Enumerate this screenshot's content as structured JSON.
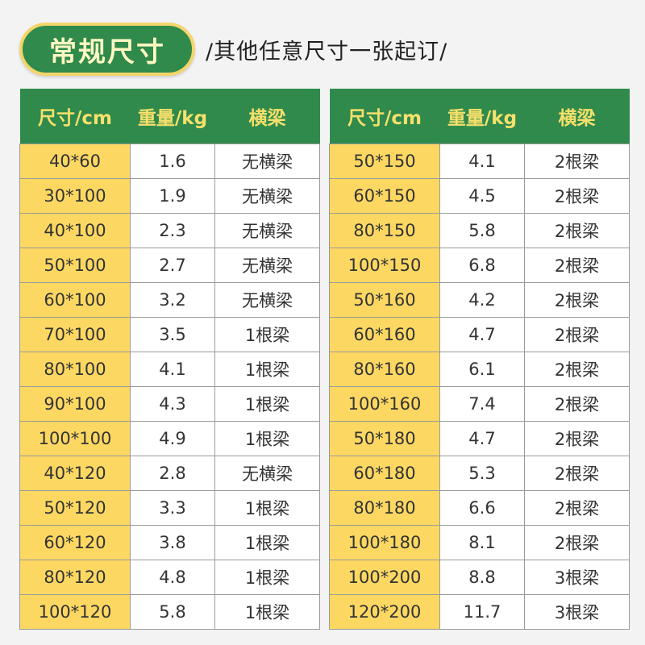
{
  "header": {
    "badge": "常规尺寸",
    "subtitle": "/其他任意尺寸一张起订/"
  },
  "columns": [
    "尺寸/cm",
    "重量/kg",
    "横梁"
  ],
  "left_table": [
    [
      "40*60",
      "1.6",
      "无横梁"
    ],
    [
      "30*100",
      "1.9",
      "无横梁"
    ],
    [
      "40*100",
      "2.3",
      "无横梁"
    ],
    [
      "50*100",
      "2.7",
      "无横梁"
    ],
    [
      "60*100",
      "3.2",
      "无横梁"
    ],
    [
      "70*100",
      "3.5",
      "1根梁"
    ],
    [
      "80*100",
      "4.1",
      "1根梁"
    ],
    [
      "90*100",
      "4.3",
      "1根梁"
    ],
    [
      "100*100",
      "4.9",
      "1根梁"
    ],
    [
      "40*120",
      "2.8",
      "无横梁"
    ],
    [
      "50*120",
      "3.3",
      "1根梁"
    ],
    [
      "60*120",
      "3.8",
      "1根梁"
    ],
    [
      "80*120",
      "4.8",
      "1根梁"
    ],
    [
      "100*120",
      "5.8",
      "1根梁"
    ]
  ],
  "right_table": [
    [
      "50*150",
      "4.1",
      "2根梁"
    ],
    [
      "60*150",
      "4.5",
      "2根梁"
    ],
    [
      "80*150",
      "5.8",
      "2根梁"
    ],
    [
      "100*150",
      "6.8",
      "2根梁"
    ],
    [
      "50*160",
      "4.2",
      "2根梁"
    ],
    [
      "60*160",
      "4.7",
      "2根梁"
    ],
    [
      "80*160",
      "6.1",
      "2根梁"
    ],
    [
      "100*160",
      "7.4",
      "2根梁"
    ],
    [
      "50*180",
      "4.7",
      "2根梁"
    ],
    [
      "60*180",
      "5.3",
      "2根梁"
    ],
    [
      "80*180",
      "6.6",
      "2根梁"
    ],
    [
      "100*180",
      "8.1",
      "2根梁"
    ],
    [
      "100*200",
      "8.8",
      "3根梁"
    ],
    [
      "120*200",
      "11.7",
      "3根梁"
    ]
  ],
  "colors": {
    "header_green": "#2f8a4c",
    "header_text_yellow": "#f7e06b",
    "size_cell_yellow": "#fcd863",
    "badge_border": "#f3d56a"
  }
}
